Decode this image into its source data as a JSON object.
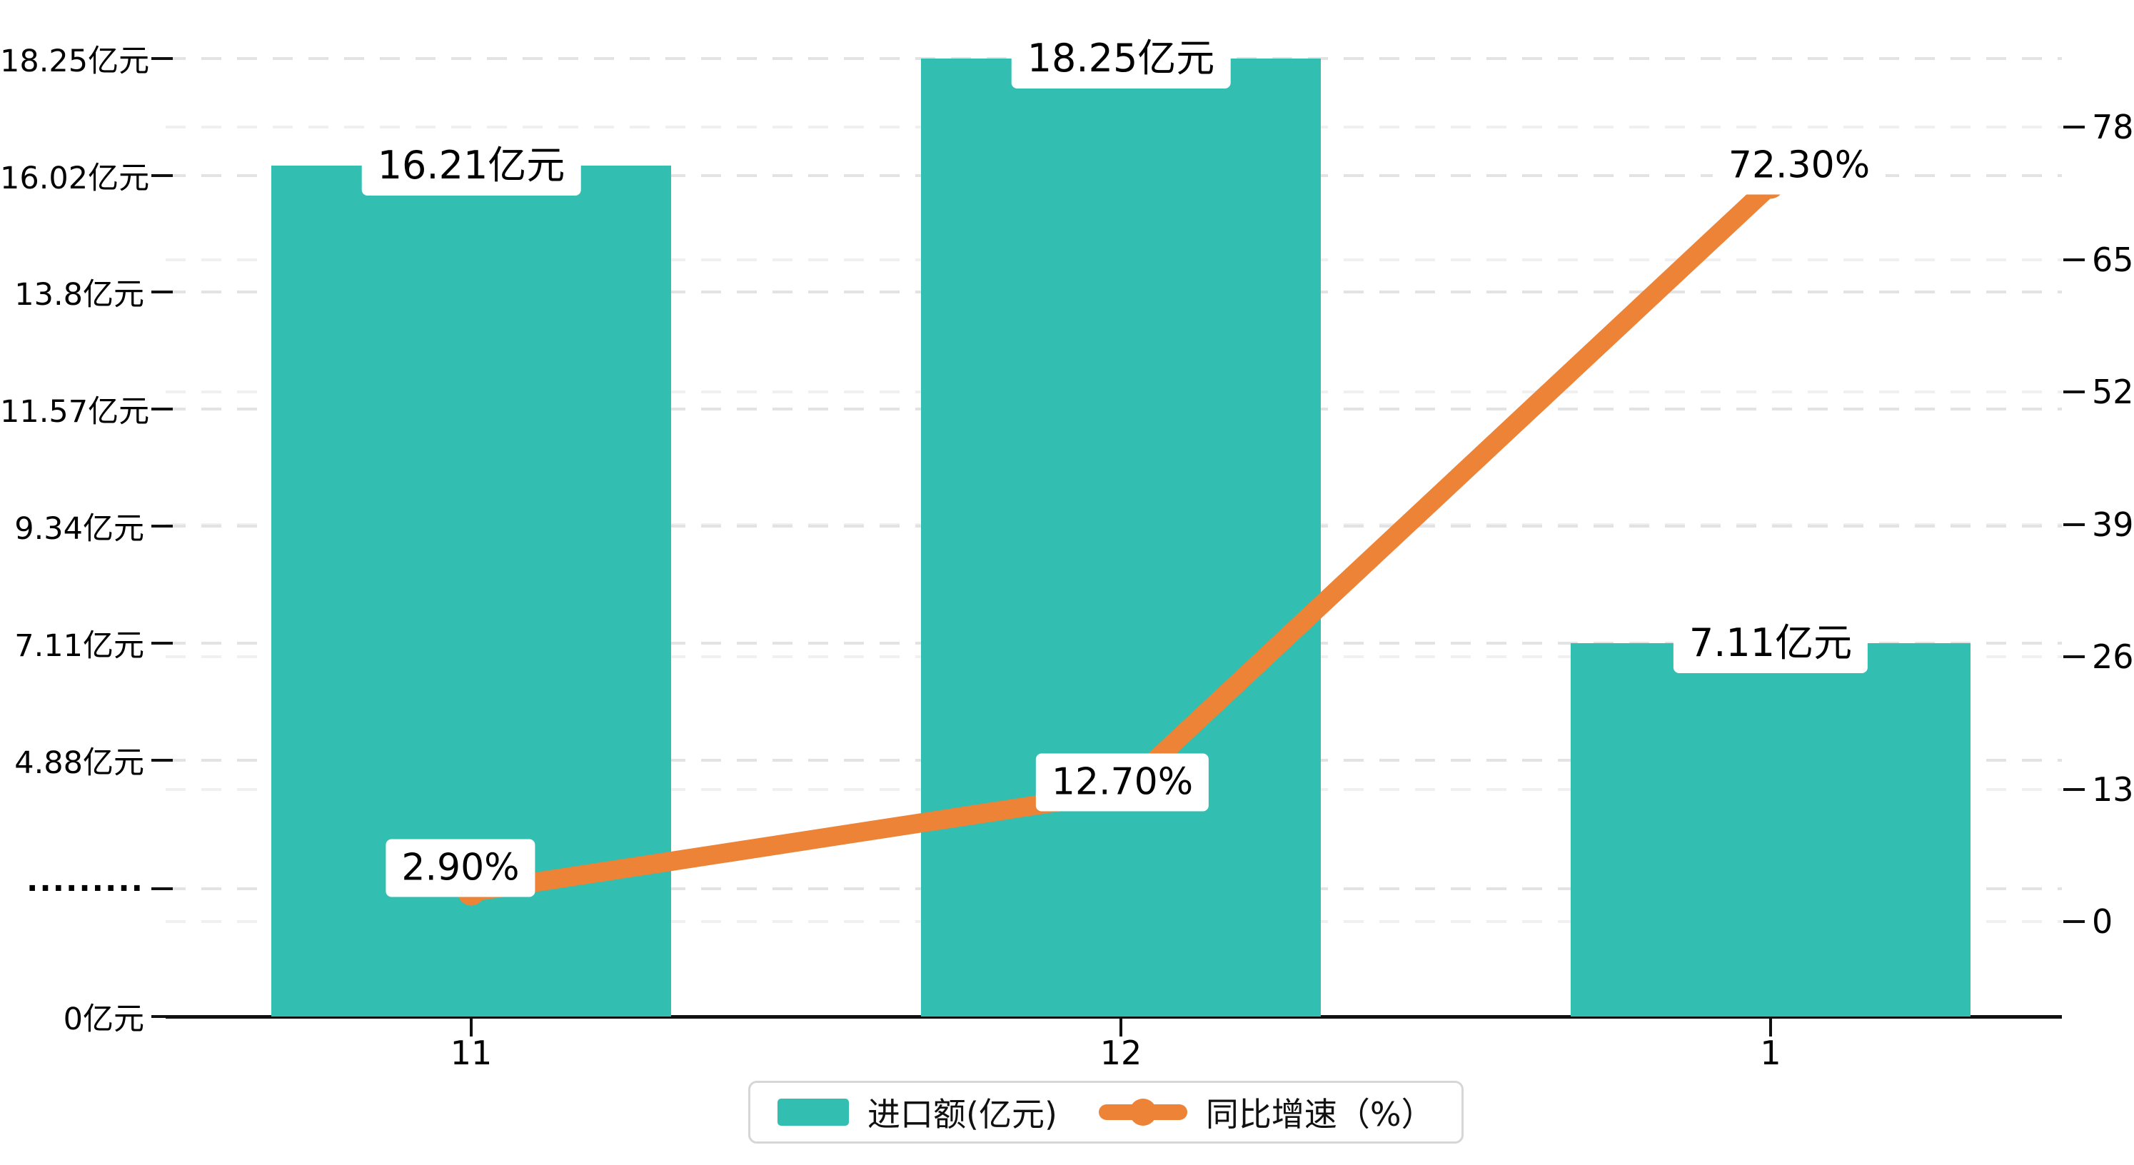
{
  "chart_data": {
    "type": "bar+line",
    "categories": [
      "11",
      "12",
      "1"
    ],
    "series": [
      {
        "name": "进口额(亿元)",
        "type": "bar",
        "axis": "left",
        "values": [
          16.21,
          18.25,
          7.11
        ],
        "labels": [
          "16.21亿元",
          "18.25亿元",
          "7.11亿元"
        ],
        "color": "#32beb1"
      },
      {
        "name": "同比增速（%）",
        "type": "line",
        "axis": "right",
        "values": [
          2.9,
          12.7,
          72.3
        ],
        "labels": [
          "2.90%",
          "12.70%",
          "72.30%"
        ],
        "color": "#ed8336"
      }
    ],
    "left_axis": {
      "min": 0,
      "max": 18.25,
      "ticks": [
        {
          "value": 0,
          "label": "0亿元"
        },
        {
          "value": 2.44,
          "label": "·········"
        },
        {
          "value": 4.88,
          "label": "4.88亿元"
        },
        {
          "value": 7.11,
          "label": "7.11亿元"
        },
        {
          "value": 9.34,
          "label": "9.34亿元"
        },
        {
          "value": 11.57,
          "label": "11.57亿元"
        },
        {
          "value": 13.8,
          "label": "13.8亿元"
        },
        {
          "value": 16.02,
          "label": "16.02亿元"
        },
        {
          "value": 18.25,
          "label": "18.25亿元"
        }
      ]
    },
    "right_axis": {
      "max": 78,
      "ticks": [
        {
          "value": 0,
          "label": "0"
        },
        {
          "value": 13,
          "label": "13"
        },
        {
          "value": 26,
          "label": "26"
        },
        {
          "value": 39,
          "label": "39"
        },
        {
          "value": 52,
          "label": "52"
        },
        {
          "value": 65,
          "label": "65"
        },
        {
          "value": 78,
          "label": "78"
        }
      ]
    },
    "grid": true,
    "legend_position": "bottom"
  },
  "legend": {
    "items": [
      {
        "label": "进口额(亿元)",
        "type": "bar"
      },
      {
        "label": "同比增速（%）",
        "type": "line"
      }
    ]
  },
  "colors": {
    "bar": "#32beb1",
    "line": "#ed8336",
    "grid_left": "#e3e3e3",
    "grid_right": "#f0f0f0",
    "axis": "#111111",
    "legend_border": "#d6d6d6"
  }
}
